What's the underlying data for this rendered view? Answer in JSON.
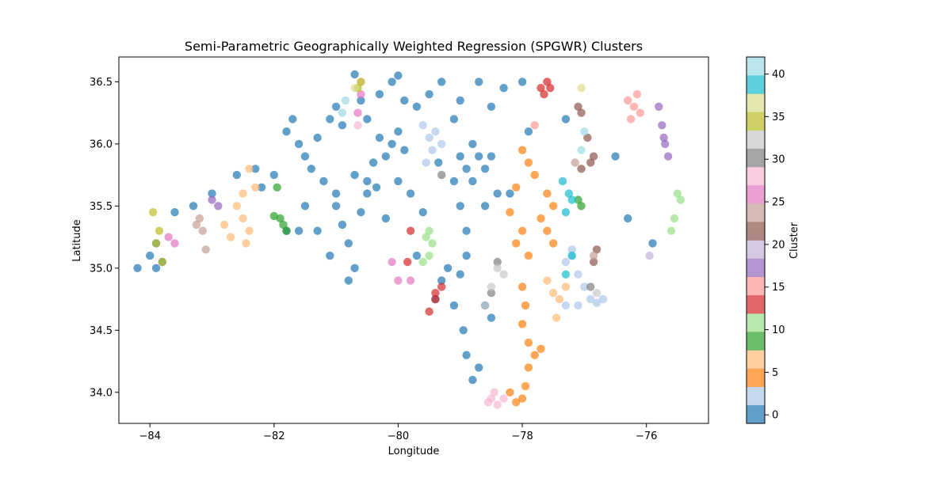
{
  "chart_data": {
    "type": "scatter",
    "title": "Semi-Parametric Geographically Weighted Regression (SPGWR) Clusters",
    "xlabel": "Longitude",
    "ylabel": "Latitude",
    "xlim": [
      -84.5,
      -75.0
    ],
    "ylim": [
      33.75,
      36.7
    ],
    "xticks": [
      -84,
      -82,
      -80,
      -78,
      -76
    ],
    "yticks": [
      34.0,
      34.5,
      35.0,
      35.5,
      36.0,
      36.5
    ],
    "grid": false,
    "colorbar": {
      "label": "Cluster",
      "range": [
        -1,
        42
      ],
      "ticks": [
        0,
        5,
        10,
        15,
        20,
        25,
        30,
        35,
        40
      ],
      "colors": [
        "#1f77b4",
        "#aec7e8",
        "#ff7f0e",
        "#ffbb78",
        "#2ca02c",
        "#98df8a",
        "#d62728",
        "#ff9896",
        "#9467bd",
        "#c5b0d5",
        "#8c564b",
        "#c49c94",
        "#e377c2",
        "#f7b6d2",
        "#7f7f7f",
        "#c7c7c7",
        "#bcbd22",
        "#dbdb8d",
        "#17becf",
        "#9edae5"
      ]
    },
    "series": [
      {
        "cluster": 0,
        "color": "#1f77b4",
        "points": [
          [
            -84.2,
            35.0
          ],
          [
            -84.0,
            35.1
          ],
          [
            -83.9,
            35.0
          ],
          [
            -83.8,
            35.05
          ],
          [
            -83.9,
            35.2
          ],
          [
            -83.6,
            35.45
          ],
          [
            -83.3,
            35.5
          ],
          [
            -83.0,
            35.6
          ],
          [
            -82.6,
            35.75
          ],
          [
            -82.3,
            35.8
          ],
          [
            -82.2,
            35.65
          ],
          [
            -82.0,
            35.75
          ],
          [
            -81.7,
            36.2
          ],
          [
            -81.8,
            36.1
          ],
          [
            -81.6,
            36.0
          ],
          [
            -81.5,
            35.9
          ],
          [
            -81.3,
            36.05
          ],
          [
            -81.1,
            36.2
          ],
          [
            -81.0,
            36.3
          ],
          [
            -80.9,
            36.15
          ],
          [
            -80.7,
            36.56
          ],
          [
            -80.6,
            36.35
          ],
          [
            -80.5,
            36.2
          ],
          [
            -80.3,
            36.4
          ],
          [
            -80.1,
            36.5
          ],
          [
            -80.0,
            36.55
          ],
          [
            -79.9,
            36.35
          ],
          [
            -79.7,
            36.3
          ],
          [
            -79.5,
            36.4
          ],
          [
            -79.3,
            36.5
          ],
          [
            -79.1,
            36.2
          ],
          [
            -79.0,
            36.35
          ],
          [
            -78.7,
            36.5
          ],
          [
            -78.5,
            36.3
          ],
          [
            -78.3,
            36.45
          ],
          [
            -78.0,
            36.5
          ],
          [
            -81.4,
            35.8
          ],
          [
            -81.2,
            35.7
          ],
          [
            -81.0,
            35.5
          ],
          [
            -80.9,
            35.35
          ],
          [
            -80.8,
            35.2
          ],
          [
            -80.7,
            35.0
          ],
          [
            -80.8,
            34.9
          ],
          [
            -81.1,
            35.1
          ],
          [
            -81.3,
            35.3
          ],
          [
            -81.5,
            35.5
          ],
          [
            -81.6,
            35.3
          ],
          [
            -81.8,
            35.3
          ],
          [
            -80.2,
            35.9
          ],
          [
            -80.1,
            36.0
          ],
          [
            -80.0,
            36.1
          ],
          [
            -79.9,
            35.95
          ],
          [
            -80.3,
            36.05
          ],
          [
            -80.4,
            35.85
          ],
          [
            -80.5,
            35.6
          ],
          [
            -80.6,
            35.45
          ],
          [
            -80.2,
            35.4
          ],
          [
            -80.0,
            35.7
          ],
          [
            -79.8,
            35.6
          ],
          [
            -79.7,
            35.1
          ],
          [
            -79.0,
            35.9
          ],
          [
            -78.9,
            35.8
          ],
          [
            -78.8,
            35.7
          ],
          [
            -78.7,
            35.9
          ],
          [
            -78.6,
            35.8
          ],
          [
            -78.8,
            36.0
          ],
          [
            -79.1,
            35.7
          ],
          [
            -79.0,
            35.5
          ],
          [
            -78.9,
            35.3
          ],
          [
            -78.6,
            35.5
          ],
          [
            -78.4,
            35.6
          ],
          [
            -78.5,
            35.9
          ],
          [
            -79.2,
            35.0
          ],
          [
            -79.0,
            34.95
          ],
          [
            -78.9,
            35.1
          ],
          [
            -79.1,
            34.7
          ],
          [
            -78.95,
            34.5
          ],
          [
            -78.9,
            34.3
          ],
          [
            -78.8,
            34.1
          ],
          [
            -78.7,
            34.2
          ],
          [
            -79.3,
            34.9
          ],
          [
            -78.6,
            34.7
          ],
          [
            -78.5,
            34.6
          ],
          [
            -79.4,
            34.75
          ],
          [
            -80.5,
            35.7
          ],
          [
            -80.7,
            35.75
          ],
          [
            -81.0,
            35.6
          ],
          [
            -80.35,
            35.65
          ],
          [
            -79.35,
            35.85
          ],
          [
            -79.6,
            35.45
          ],
          [
            -78.2,
            35.6
          ],
          [
            -77.9,
            36.1
          ],
          [
            -77.3,
            36.2
          ],
          [
            -76.5,
            35.9
          ],
          [
            -76.3,
            35.4
          ],
          [
            -75.9,
            35.2
          ]
        ]
      },
      {
        "cluster": 2,
        "color": "#aec7e8",
        "points": [
          [
            -79.6,
            36.15
          ],
          [
            -79.5,
            36.05
          ],
          [
            -79.4,
            36.1
          ],
          [
            -79.55,
            35.85
          ],
          [
            -79.45,
            35.95
          ],
          [
            -79.3,
            36.0
          ],
          [
            -77.3,
            35.05
          ],
          [
            -77.2,
            35.1
          ],
          [
            -77.1,
            34.95
          ],
          [
            -77.0,
            34.85
          ],
          [
            -76.9,
            34.75
          ],
          [
            -77.1,
            34.7
          ],
          [
            -77.3,
            34.7
          ],
          [
            -76.8,
            34.72
          ],
          [
            -76.7,
            34.75
          ],
          [
            -77.2,
            35.15
          ]
        ]
      },
      {
        "cluster": 5,
        "color": "#ff7f0e",
        "points": [
          [
            -78.0,
            35.95
          ],
          [
            -77.9,
            35.85
          ],
          [
            -77.8,
            35.75
          ],
          [
            -78.1,
            35.65
          ],
          [
            -77.6,
            35.6
          ],
          [
            -77.5,
            35.5
          ],
          [
            -77.7,
            35.4
          ],
          [
            -78.0,
            35.3
          ],
          [
            -78.1,
            35.2
          ],
          [
            -77.9,
            35.1
          ],
          [
            -78.2,
            35.45
          ],
          [
            -77.6,
            35.3
          ],
          [
            -78.0,
            34.85
          ],
          [
            -77.95,
            34.7
          ],
          [
            -78.0,
            34.55
          ],
          [
            -77.9,
            34.4
          ],
          [
            -77.8,
            34.3
          ],
          [
            -77.9,
            34.2
          ],
          [
            -77.95,
            34.05
          ],
          [
            -78.0,
            33.95
          ],
          [
            -78.1,
            33.92
          ],
          [
            -77.7,
            34.35
          ],
          [
            -78.2,
            34.0
          ],
          [
            -77.5,
            35.2
          ]
        ]
      },
      {
        "cluster": 6,
        "color": "#ffbb78",
        "points": [
          [
            -82.6,
            35.5
          ],
          [
            -82.5,
            35.4
          ],
          [
            -82.4,
            35.3
          ],
          [
            -82.5,
            35.6
          ],
          [
            -82.7,
            35.25
          ],
          [
            -82.3,
            35.65
          ],
          [
            -82.45,
            35.2
          ],
          [
            -82.8,
            35.35
          ],
          [
            -82.4,
            35.8
          ],
          [
            -77.5,
            34.8
          ],
          [
            -77.4,
            34.75
          ],
          [
            -77.6,
            34.9
          ],
          [
            -77.45,
            34.6
          ],
          [
            -77.3,
            34.85
          ]
        ]
      },
      {
        "cluster": 11,
        "color": "#2ca02c",
        "points": [
          [
            -81.9,
            35.4
          ],
          [
            -81.85,
            35.35
          ],
          [
            -81.8,
            35.3
          ],
          [
            -82.0,
            35.42
          ],
          [
            -81.95,
            35.65
          ],
          [
            -77.1,
            35.55
          ],
          [
            -77.05,
            35.5
          ]
        ]
      },
      {
        "cluster": 12,
        "color": "#98df8a",
        "points": [
          [
            -79.5,
            35.3
          ],
          [
            -79.45,
            35.2
          ],
          [
            -79.5,
            35.1
          ],
          [
            -79.6,
            35.05
          ],
          [
            -79.55,
            35.25
          ],
          [
            -75.5,
            35.6
          ],
          [
            -75.55,
            35.4
          ],
          [
            -75.6,
            35.3
          ],
          [
            -75.45,
            35.55
          ]
        ]
      },
      {
        "cluster": 13,
        "color": "#d62728",
        "points": [
          [
            -77.7,
            36.45
          ],
          [
            -77.6,
            36.5
          ],
          [
            -77.65,
            36.4
          ],
          [
            -77.55,
            36.45
          ],
          [
            -79.3,
            34.85
          ],
          [
            -79.4,
            34.75
          ],
          [
            -79.5,
            34.65
          ],
          [
            -79.8,
            35.3
          ],
          [
            -79.85,
            35.05
          ],
          [
            -79.4,
            34.8
          ]
        ]
      },
      {
        "cluster": 15,
        "color": "#ff9896",
        "points": [
          [
            -76.3,
            36.35
          ],
          [
            -76.2,
            36.3
          ],
          [
            -76.1,
            36.25
          ],
          [
            -76.25,
            36.2
          ],
          [
            -76.15,
            36.4
          ],
          [
            -77.8,
            36.15
          ]
        ]
      },
      {
        "cluster": 17,
        "color": "#9467bd",
        "points": [
          [
            -75.8,
            36.3
          ],
          [
            -75.75,
            36.15
          ],
          [
            -75.7,
            36.0
          ],
          [
            -75.65,
            35.9
          ],
          [
            -75.72,
            36.05
          ],
          [
            -82.9,
            35.5
          ],
          [
            -83.0,
            35.55
          ]
        ]
      },
      {
        "cluster": 18,
        "color": "#c5b0d5",
        "points": [
          [
            -75.95,
            35.1
          ]
        ]
      },
      {
        "cluster": 20,
        "color": "#8c564b",
        "points": [
          [
            -77.1,
            36.3
          ],
          [
            -77.05,
            36.25
          ],
          [
            -76.95,
            36.05
          ],
          [
            -76.9,
            35.85
          ],
          [
            -76.85,
            35.9
          ],
          [
            -77.05,
            35.8
          ],
          [
            -76.8,
            35.15
          ],
          [
            -76.85,
            35.05
          ]
        ]
      },
      {
        "cluster": 22,
        "color": "#c49c94",
        "points": [
          [
            -83.2,
            35.4
          ],
          [
            -83.15,
            35.3
          ],
          [
            -83.1,
            35.15
          ],
          [
            -83.25,
            35.35
          ],
          [
            -77.15,
            35.85
          ],
          [
            -76.85,
            35.1
          ]
        ]
      },
      {
        "cluster": 25,
        "color": "#e377c2",
        "points": [
          [
            -83.6,
            35.2
          ],
          [
            -83.7,
            35.25
          ],
          [
            -80.6,
            36.4
          ],
          [
            -80.65,
            36.25
          ],
          [
            -80.0,
            34.9
          ],
          [
            -79.8,
            34.9
          ],
          [
            -80.1,
            35.05
          ]
        ]
      },
      {
        "cluster": 26,
        "color": "#f7b6d2",
        "points": [
          [
            -78.5,
            33.95
          ],
          [
            -78.4,
            33.9
          ],
          [
            -78.3,
            33.95
          ],
          [
            -78.45,
            34.0
          ],
          [
            -78.55,
            33.92
          ],
          [
            -80.6,
            36.5
          ],
          [
            -80.65,
            36.15
          ]
        ]
      },
      {
        "cluster": 29,
        "color": "#7f7f7f",
        "points": [
          [
            -79.3,
            35.75
          ],
          [
            -78.4,
            35.05
          ],
          [
            -78.5,
            34.8
          ],
          [
            -76.9,
            34.85
          ]
        ]
      },
      {
        "cluster": 31,
        "color": "#c7c7c7",
        "points": [
          [
            -78.4,
            35.0
          ],
          [
            -78.5,
            34.85
          ],
          [
            -78.6,
            34.7
          ],
          [
            -78.3,
            34.95
          ],
          [
            -76.8,
            34.8
          ]
        ]
      },
      {
        "cluster": 35,
        "color": "#bcbd22",
        "points": [
          [
            -80.6,
            36.5
          ],
          [
            -80.65,
            36.45
          ],
          [
            -83.95,
            35.45
          ],
          [
            -83.85,
            35.3
          ],
          [
            -83.9,
            35.2
          ],
          [
            -83.8,
            35.05
          ]
        ]
      },
      {
        "cluster": 37,
        "color": "#dbdb8d",
        "points": [
          [
            -77.05,
            36.45
          ],
          [
            -80.7,
            36.45
          ]
        ]
      },
      {
        "cluster": 40,
        "color": "#17becf",
        "points": [
          [
            -77.2,
            35.55
          ],
          [
            -77.25,
            35.6
          ],
          [
            -77.3,
            35.45
          ],
          [
            -77.35,
            35.7
          ],
          [
            -77.2,
            35.1
          ],
          [
            -77.3,
            34.95
          ]
        ]
      },
      {
        "cluster": 42,
        "color": "#9edae5",
        "points": [
          [
            -80.9,
            36.25
          ],
          [
            -80.85,
            36.35
          ],
          [
            -77.0,
            36.1
          ],
          [
            -77.05,
            35.95
          ]
        ]
      }
    ]
  }
}
